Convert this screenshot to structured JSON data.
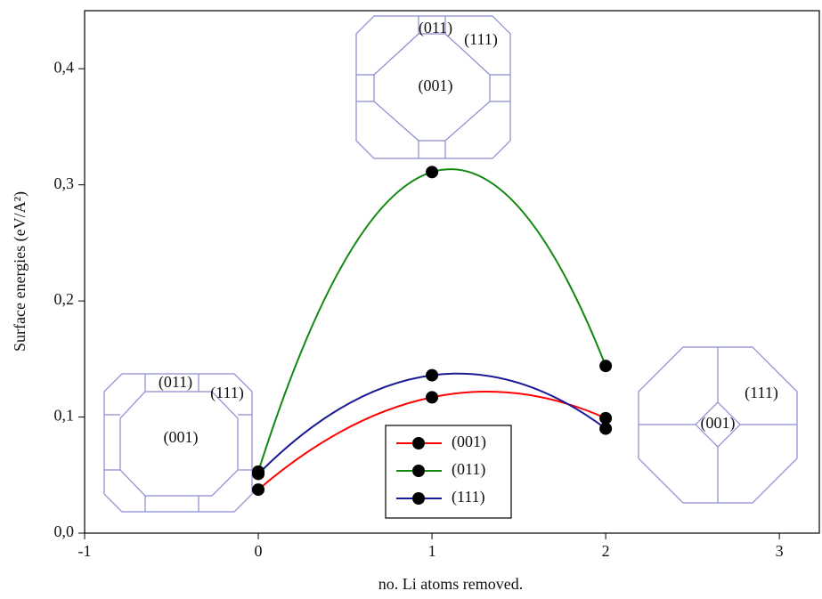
{
  "chart_data": {
    "type": "line",
    "x_label": "no. Li atoms removed.",
    "y_label": "Surface energies (eV/A²)",
    "x": [
      0,
      1,
      2
    ],
    "series": [
      {
        "name": "(001)",
        "color": "#ff0000",
        "values": [
          0.0375,
          0.117,
          0.099
        ]
      },
      {
        "name": "(011)",
        "color": "#118811",
        "values": [
          0.053,
          0.311,
          0.144
        ]
      },
      {
        "name": "(111)",
        "color": "#1a1a96",
        "values": [
          0.051,
          0.136,
          0.09
        ]
      }
    ],
    "xlim": [
      -1,
      3.23
    ],
    "ylim": [
      0,
      0.45
    ],
    "xticks": [
      -1,
      0,
      1,
      2,
      3
    ],
    "yticks": [
      {
        "value": 0,
        "label": "0,0"
      },
      {
        "value": 0.1,
        "label": "0,1"
      },
      {
        "value": 0.2,
        "label": "0,2"
      },
      {
        "value": 0.3,
        "label": "0,3"
      },
      {
        "value": 0.4,
        "label": "0,4"
      }
    ],
    "marker_color": "#000000",
    "annotations": [
      "(011)",
      "(111)",
      "(001)",
      "(011)",
      "(111)",
      "(001)",
      "(111)",
      "(001)"
    ]
  }
}
